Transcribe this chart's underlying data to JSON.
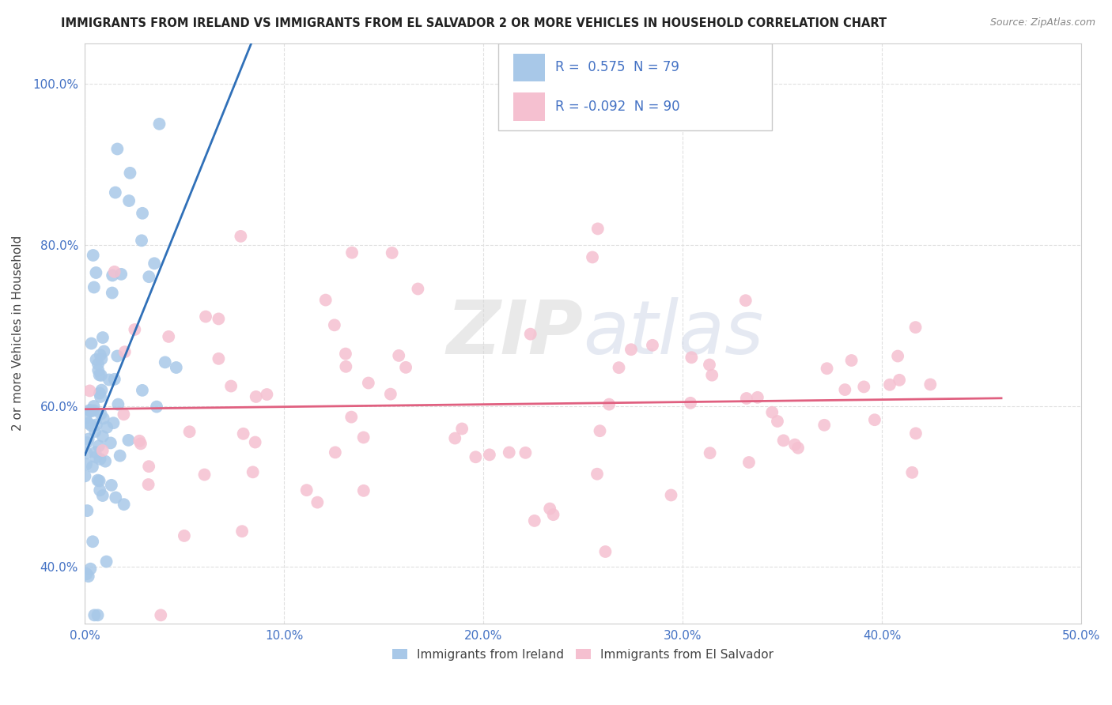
{
  "title": "IMMIGRANTS FROM IRELAND VS IMMIGRANTS FROM EL SALVADOR 2 OR MORE VEHICLES IN HOUSEHOLD CORRELATION CHART",
  "source": "Source: ZipAtlas.com",
  "ylabel": "2 or more Vehicles in Household",
  "legend_labels": [
    "Immigrants from Ireland",
    "Immigrants from El Salvador"
  ],
  "ireland_R": 0.575,
  "ireland_N": 79,
  "elsalvador_R": -0.092,
  "elsalvador_N": 90,
  "xlim": [
    0.0,
    0.5
  ],
  "ylim": [
    0.33,
    1.05
  ],
  "xticks": [
    0.0,
    0.1,
    0.2,
    0.3,
    0.4,
    0.5
  ],
  "yticks": [
    0.4,
    0.6,
    0.8,
    1.0
  ],
  "xticklabels": [
    "0.0%",
    "10.0%",
    "20.0%",
    "30.0%",
    "40.0%",
    "50.0%"
  ],
  "yticklabels": [
    "40.0%",
    "60.0%",
    "80.0%",
    "100.0%"
  ],
  "blue_color": "#a8c8e8",
  "pink_color": "#f5c0d0",
  "blue_line_color": "#3070b8",
  "pink_line_color": "#e06080",
  "watermark_zip": "ZIP",
  "watermark_atlas": "atlas",
  "background_color": "#ffffff",
  "grid_color": "#e0e0e0",
  "tick_color": "#4472c4",
  "title_color": "#222222",
  "source_color": "#888888",
  "ylabel_color": "#444444",
  "legend_text_color": "#222222",
  "bottom_legend_text_color": "#444444"
}
